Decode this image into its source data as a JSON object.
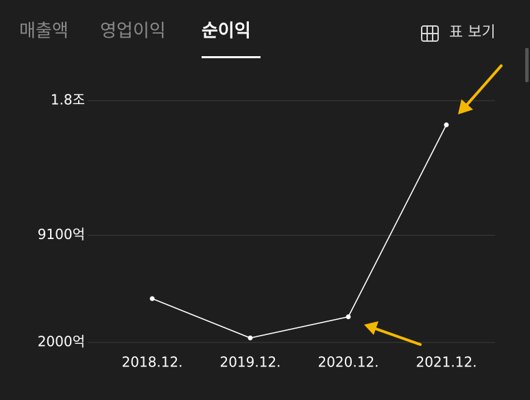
{
  "tabs": [
    "매출액",
    "영업이익",
    "순이익"
  ],
  "active_tab": 2,
  "table_button": "표 보기",
  "chart_data": {
    "type": "line",
    "categories": [
      "2018.12.",
      "2019.12.",
      "2020.12.",
      "2021.12."
    ],
    "values": [
      4900,
      2300,
      3700,
      16400
    ],
    "color": "#ffffff",
    "ylim": [
      2000,
      18000
    ],
    "yticks": [
      {
        "value": 2000,
        "label": "2000억"
      },
      {
        "value": 9100,
        "label": "9100억"
      },
      {
        "value": 18000,
        "label": "1.8조"
      }
    ],
    "grid": true
  }
}
